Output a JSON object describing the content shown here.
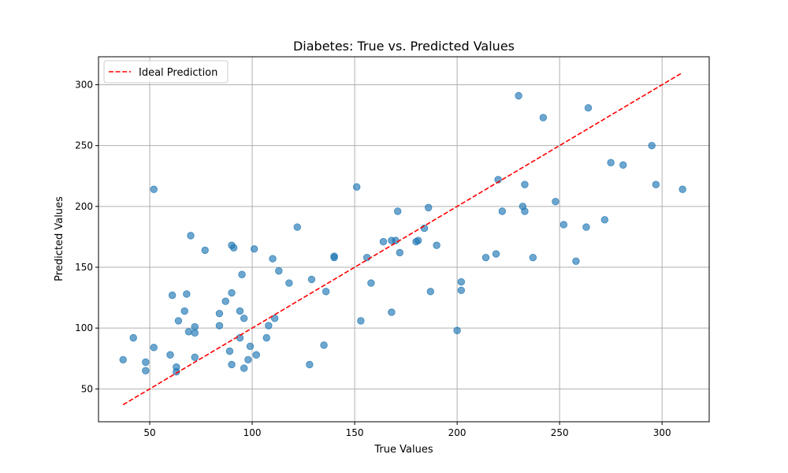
{
  "chart_data": {
    "type": "scatter",
    "title": "Diabetes: True vs. Predicted Values",
    "xlabel": "True Values",
    "ylabel": "Predicted Values",
    "xlim": [
      25,
      323
    ],
    "ylim": [
      23,
      323
    ],
    "xticks": [
      50,
      100,
      150,
      200,
      250,
      300
    ],
    "yticks": [
      50,
      100,
      150,
      200,
      250,
      300
    ],
    "grid": true,
    "legend_position": "top-left",
    "colors": {
      "points": "#1f77b4",
      "ideal_line": "#ff0000",
      "grid": "#b0b0b0"
    },
    "series": [
      {
        "type": "scatter",
        "points": [
          [
            37,
            74
          ],
          [
            42,
            92
          ],
          [
            48,
            72
          ],
          [
            48,
            65
          ],
          [
            52,
            214
          ],
          [
            52,
            84
          ],
          [
            60,
            78
          ],
          [
            61,
            127
          ],
          [
            63,
            68
          ],
          [
            63,
            64
          ],
          [
            64,
            106
          ],
          [
            67,
            114
          ],
          [
            68,
            128
          ],
          [
            69,
            97
          ],
          [
            70,
            176
          ],
          [
            72,
            101
          ],
          [
            72,
            96
          ],
          [
            72,
            76
          ],
          [
            77,
            164
          ],
          [
            84,
            112
          ],
          [
            84,
            102
          ],
          [
            87,
            122
          ],
          [
            89,
            81
          ],
          [
            90,
            168
          ],
          [
            90,
            129
          ],
          [
            90,
            70
          ],
          [
            91,
            166
          ],
          [
            94,
            92
          ],
          [
            94,
            114
          ],
          [
            95,
            144
          ],
          [
            96,
            108
          ],
          [
            96,
            67
          ],
          [
            98,
            74
          ],
          [
            99,
            85
          ],
          [
            101,
            165
          ],
          [
            102,
            78
          ],
          [
            107,
            92
          ],
          [
            108,
            102
          ],
          [
            110,
            157
          ],
          [
            111,
            108
          ],
          [
            113,
            147
          ],
          [
            118,
            137
          ],
          [
            122,
            183
          ],
          [
            128,
            70
          ],
          [
            129,
            140
          ],
          [
            135,
            86
          ],
          [
            136,
            130
          ],
          [
            140,
            159
          ],
          [
            140,
            158
          ],
          [
            151,
            216
          ],
          [
            153,
            106
          ],
          [
            156,
            158
          ],
          [
            158,
            137
          ],
          [
            164,
            171
          ],
          [
            168,
            172
          ],
          [
            168,
            113
          ],
          [
            170,
            172
          ],
          [
            171,
            196
          ],
          [
            172,
            162
          ],
          [
            180,
            171
          ],
          [
            181,
            172
          ],
          [
            184,
            182
          ],
          [
            186,
            199
          ],
          [
            187,
            130
          ],
          [
            190,
            168
          ],
          [
            200,
            98
          ],
          [
            202,
            138
          ],
          [
            202,
            131
          ],
          [
            214,
            158
          ],
          [
            219,
            161
          ],
          [
            220,
            222
          ],
          [
            222,
            196
          ],
          [
            230,
            291
          ],
          [
            232,
            200
          ],
          [
            233,
            218
          ],
          [
            233,
            196
          ],
          [
            237,
            158
          ],
          [
            242,
            273
          ],
          [
            248,
            204
          ],
          [
            252,
            185
          ],
          [
            258,
            155
          ],
          [
            263,
            183
          ],
          [
            264,
            281
          ],
          [
            272,
            189
          ],
          [
            275,
            236
          ],
          [
            281,
            234
          ],
          [
            295,
            250
          ],
          [
            297,
            218
          ],
          [
            310,
            214
          ]
        ]
      },
      {
        "name": "Ideal Prediction",
        "type": "line",
        "style": "dashed",
        "points": [
          [
            37,
            37
          ],
          [
            310,
            310
          ]
        ]
      }
    ]
  }
}
